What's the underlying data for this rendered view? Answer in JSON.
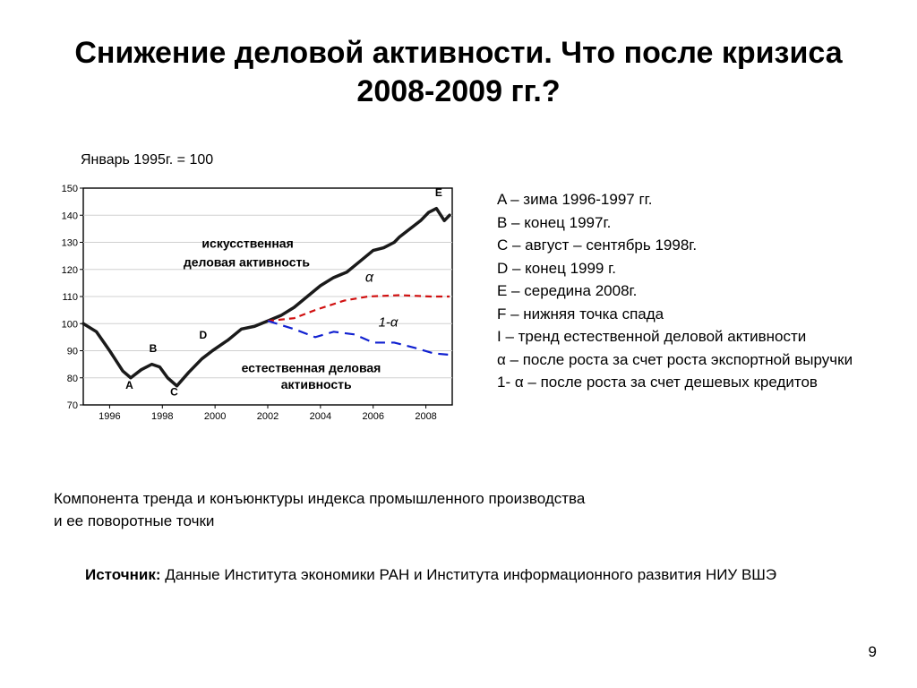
{
  "title": "Снижение деловой активности. Что после кризиса 2008-2009 гг.?",
  "index_label": "Январь 1995г. = 100",
  "legend": {
    "a": "A – зима 1996-1997 гг.",
    "b": "B – конец 1997г.",
    "c": "C – август – сентябрь 1998г.",
    "d": "D – конец 1999 г.",
    "e": "E – середина 2008г.",
    "f": "F – нижняя точка спада",
    "i": "I – тренд естественной деловой активности",
    "alpha": "α – после роста за счет роста экспортной выручки",
    "one_minus_alpha": "1- α – после роста за счет дешевых кредитов"
  },
  "caption": "Компонента тренда и конъюнктуры индекса промышленного производства и ее поворотные точки",
  "source_label": "Источник:",
  "source_text": " Данные Института экономики РАН и Института информационного развития НИУ ВШЭ",
  "page_number": "9",
  "chart": {
    "type": "line",
    "xlim": [
      1995,
      2009
    ],
    "ylim": [
      70,
      150
    ],
    "xtick_labels": [
      "1996",
      "1998",
      "2000",
      "2002",
      "2004",
      "2006",
      "2008"
    ],
    "xtick_values": [
      1996,
      1998,
      2000,
      2002,
      2004,
      2006,
      2008
    ],
    "ytick_values": [
      70,
      80,
      90,
      100,
      110,
      120,
      130,
      140,
      150
    ],
    "ytick_labels": [
      "70",
      "80",
      "90",
      "100",
      "110",
      "120",
      "130",
      "140",
      "150"
    ],
    "plot_background": "#ffffff",
    "grid_color": "#d0d0d0",
    "axis_color": "#000000",
    "tick_fontsize": 11,
    "annotation_fontsize": 14,
    "series": {
      "main": {
        "color": "#1a1a1a",
        "width": 3.5,
        "points": [
          [
            1995.0,
            100
          ],
          [
            1995.5,
            97
          ],
          [
            1996.0,
            90
          ],
          [
            1996.5,
            82.5
          ],
          [
            1996.8,
            80
          ],
          [
            1997.2,
            83
          ],
          [
            1997.6,
            85
          ],
          [
            1997.9,
            84
          ],
          [
            1998.2,
            80
          ],
          [
            1998.55,
            77
          ],
          [
            1999.0,
            82
          ],
          [
            1999.5,
            87
          ],
          [
            1999.9,
            90
          ],
          [
            2000.5,
            94
          ],
          [
            2001.0,
            98
          ],
          [
            2001.5,
            99
          ],
          [
            2002.0,
            101
          ],
          [
            2002.5,
            103
          ],
          [
            2003.0,
            106
          ],
          [
            2003.5,
            110
          ],
          [
            2004.0,
            114
          ],
          [
            2004.5,
            117
          ],
          [
            2005.0,
            119
          ],
          [
            2005.5,
            123
          ],
          [
            2006.0,
            127
          ],
          [
            2006.4,
            128
          ],
          [
            2006.8,
            130
          ],
          [
            2007.0,
            132
          ],
          [
            2007.4,
            135
          ],
          [
            2007.8,
            138
          ],
          [
            2008.1,
            141
          ],
          [
            2008.4,
            142.5
          ],
          [
            2008.7,
            138
          ],
          [
            2008.9,
            140
          ]
        ]
      },
      "red_alpha": {
        "color": "#d01010",
        "width": 2.2,
        "dash": "7 5",
        "points": [
          [
            2002.0,
            101
          ],
          [
            2003.0,
            102
          ],
          [
            2003.8,
            105
          ],
          [
            2004.9,
            108.5
          ],
          [
            2005.8,
            110
          ],
          [
            2007.0,
            110.5
          ],
          [
            2008.2,
            110
          ],
          [
            2008.9,
            110
          ]
        ]
      },
      "blue_one_minus_alpha": {
        "color": "#1020d0",
        "width": 2.2,
        "dash": "11 7",
        "points": [
          [
            2002.0,
            101
          ],
          [
            2003.0,
            98
          ],
          [
            2003.8,
            95
          ],
          [
            2004.5,
            97
          ],
          [
            2005.3,
            96
          ],
          [
            2006.0,
            93
          ],
          [
            2006.8,
            93
          ],
          [
            2007.6,
            91
          ],
          [
            2008.3,
            89
          ],
          [
            2008.9,
            88.5
          ]
        ]
      }
    },
    "markers": [
      {
        "label": "A",
        "x": 1996.85,
        "y": 80,
        "lx": 1996.6,
        "ly": 76
      },
      {
        "label": "B",
        "x": 1997.9,
        "y": 85,
        "lx": 1997.5,
        "ly": 89.5
      },
      {
        "label": "C",
        "x": 1998.55,
        "y": 77,
        "lx": 1998.3,
        "ly": 73.5
      },
      {
        "label": "D",
        "x": 1999.9,
        "y": 90,
        "lx": 1999.4,
        "ly": 94.5
      },
      {
        "label": "E",
        "x": 2008.4,
        "y": 142.5,
        "lx": 2008.35,
        "ly": 147
      }
    ],
    "annotations": {
      "artificial_line1": "искусственная",
      "artificial_line2": "деловая активность",
      "natural_line1": "естественная деловая",
      "natural_line2": "активность",
      "alpha_symbol": "α",
      "one_minus_alpha_symbol": "1-α"
    }
  }
}
